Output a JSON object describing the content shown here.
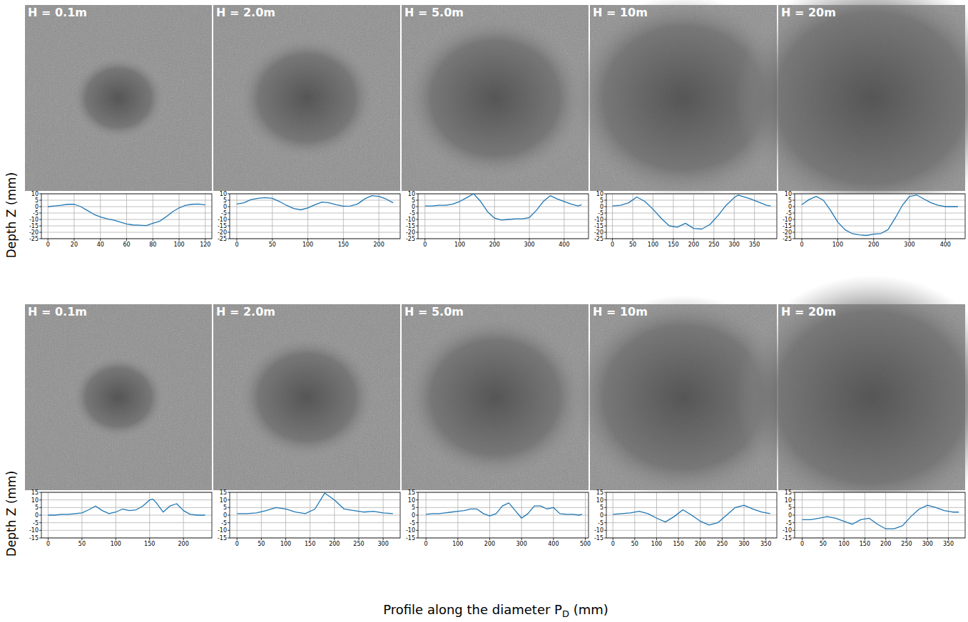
{
  "chart_data": [
    {
      "type": "line",
      "title": "H = 0.1m",
      "color": "#1f77b4",
      "grid": true,
      "x": [
        0,
        5,
        10,
        15,
        20,
        25,
        30,
        35,
        40,
        45,
        50,
        55,
        60,
        65,
        70,
        75,
        80,
        85,
        90,
        95,
        100,
        105,
        110,
        115,
        120
      ],
      "values": [
        0,
        0.5,
        1,
        1.8,
        1.8,
        0,
        -3,
        -6,
        -8,
        -9.5,
        -10.5,
        -12,
        -13.5,
        -14.3,
        -14.5,
        -14.8,
        -13,
        -11.5,
        -8,
        -4,
        -1,
        1,
        1.8,
        2,
        1.3
      ],
      "xlim": [
        -5,
        125
      ],
      "ylim": [
        -25,
        10
      ],
      "xticks": [
        0,
        20,
        40,
        60,
        80,
        100,
        120
      ],
      "yticks": [
        -25,
        -20,
        -15,
        -10,
        -5,
        0,
        5,
        10
      ]
    },
    {
      "type": "line",
      "title": "H = 2.0m",
      "color": "#1f77b4",
      "grid": true,
      "x": [
        0,
        10,
        20,
        30,
        40,
        50,
        60,
        70,
        80,
        90,
        100,
        110,
        120,
        130,
        140,
        150,
        160,
        170,
        180,
        190,
        200,
        210,
        220
      ],
      "values": [
        2,
        3,
        5.5,
        6.5,
        7,
        6.5,
        4,
        1,
        -1.5,
        -2.5,
        -1,
        1.5,
        3.5,
        3,
        1.5,
        0.3,
        0.5,
        2,
        6,
        8.5,
        8,
        6,
        3
      ],
      "xlim": [
        -10,
        230
      ],
      "ylim": [
        -25,
        10
      ],
      "xticks": [
        0,
        50,
        100,
        150,
        200
      ],
      "yticks": [
        -25,
        -20,
        -15,
        -10,
        -5,
        0,
        5,
        10
      ]
    },
    {
      "type": "line",
      "title": "H = 5.0m",
      "color": "#1f77b4",
      "grid": true,
      "x": [
        0,
        20,
        40,
        60,
        80,
        100,
        120,
        140,
        160,
        180,
        200,
        220,
        240,
        260,
        280,
        300,
        320,
        340,
        360,
        380,
        400,
        420,
        440,
        450
      ],
      "values": [
        0.5,
        0.5,
        1,
        1,
        2,
        4,
        7,
        10,
        4,
        -4,
        -9,
        -10.5,
        -10,
        -9.5,
        -9.5,
        -8.5,
        -3,
        4,
        8.5,
        6,
        4,
        2,
        0.5,
        1.5
      ],
      "xlim": [
        -20,
        470
      ],
      "ylim": [
        -25,
        10
      ],
      "xticks": [
        0,
        100,
        200,
        300,
        400
      ],
      "yticks": [
        -25,
        -20,
        -15,
        -10,
        -5,
        0,
        5,
        10
      ]
    },
    {
      "type": "line",
      "title": "H = 10m",
      "color": "#1f77b4",
      "grid": true,
      "x": [
        0,
        20,
        40,
        60,
        80,
        100,
        120,
        140,
        160,
        180,
        200,
        220,
        240,
        260,
        280,
        300,
        310,
        320,
        340,
        360,
        380,
        390
      ],
      "values": [
        0.5,
        1,
        3,
        7.5,
        4,
        -2,
        -9,
        -15,
        -16,
        -13,
        -17,
        -17.5,
        -14,
        -7,
        1,
        7,
        9,
        8,
        6,
        3.5,
        1,
        0.5
      ],
      "xlim": [
        -15,
        405
      ],
      "ylim": [
        -25,
        10
      ],
      "xticks": [
        0,
        50,
        100,
        150,
        200,
        250,
        300,
        350
      ],
      "yticks": [
        -25,
        -20,
        -15,
        -10,
        -5,
        0,
        5,
        10
      ]
    },
    {
      "type": "line",
      "title": "H = 20m",
      "color": "#1f77b4",
      "grid": true,
      "x": [
        0,
        20,
        40,
        60,
        80,
        100,
        120,
        140,
        160,
        180,
        200,
        220,
        240,
        260,
        280,
        300,
        320,
        340,
        360,
        380,
        400,
        420,
        435
      ],
      "values": [
        1.5,
        5.5,
        8,
        5,
        -3,
        -12,
        -18,
        -21,
        -22,
        -22.5,
        -21.5,
        -21,
        -18,
        -9,
        1,
        8,
        9,
        6,
        3,
        1,
        0,
        0,
        0
      ],
      "xlim": [
        -20,
        455
      ],
      "ylim": [
        -25,
        10
      ],
      "xticks": [
        0,
        100,
        200,
        300,
        400
      ],
      "yticks": [
        -25,
        -20,
        -15,
        -10,
        -5,
        0,
        5,
        10
      ]
    },
    {
      "type": "line",
      "title": "H = 0.1m",
      "color": "#1f77b4",
      "grid": true,
      "x": [
        0,
        10,
        20,
        30,
        40,
        50,
        60,
        70,
        80,
        90,
        100,
        110,
        120,
        130,
        140,
        150,
        155,
        160,
        170,
        180,
        190,
        200,
        210,
        220,
        232
      ],
      "values": [
        0,
        0,
        0.5,
        0.5,
        1,
        1.5,
        3.5,
        6,
        3,
        1,
        2,
        4,
        3,
        3.5,
        6,
        10,
        10.5,
        8,
        2,
        6,
        7.5,
        3,
        0.5,
        0,
        0
      ],
      "xlim": [
        -10,
        242
      ],
      "ylim": [
        -15,
        15
      ],
      "xticks": [
        0,
        50,
        100,
        150,
        200
      ],
      "yticks": [
        -15,
        -10,
        -5,
        0,
        5,
        10,
        15
      ]
    },
    {
      "type": "line",
      "title": "H = 2.0m",
      "color": "#1f77b4",
      "grid": true,
      "x": [
        0,
        20,
        40,
        60,
        80,
        100,
        120,
        140,
        160,
        180,
        200,
        220,
        240,
        260,
        280,
        300,
        320
      ],
      "values": [
        1,
        1,
        1.5,
        3,
        5,
        4,
        2,
        1,
        4,
        14.5,
        10,
        4,
        3,
        2,
        2.5,
        1.5,
        1
      ],
      "xlim": [
        -15,
        335
      ],
      "ylim": [
        -15,
        15
      ],
      "xticks": [
        0,
        50,
        100,
        150,
        200,
        250,
        300
      ],
      "yticks": [
        -15,
        -10,
        -5,
        0,
        5,
        10,
        15
      ]
    },
    {
      "type": "line",
      "title": "H = 5.0m",
      "color": "#1f77b4",
      "grid": true,
      "x": [
        0,
        20,
        40,
        60,
        80,
        100,
        120,
        140,
        160,
        180,
        200,
        220,
        240,
        260,
        280,
        300,
        320,
        340,
        360,
        380,
        400,
        420,
        440,
        460,
        480,
        490
      ],
      "values": [
        0.5,
        1,
        1,
        1.5,
        2,
        2.5,
        3,
        4,
        4,
        1,
        -0.5,
        1,
        6,
        8,
        3,
        -2,
        1,
        6,
        6,
        4,
        5,
        1,
        0.5,
        0.5,
        0,
        0.5
      ],
      "xlim": [
        -25,
        510
      ],
      "ylim": [
        -15,
        15
      ],
      "xticks": [
        0,
        100,
        200,
        300,
        400,
        500
      ],
      "yticks": [
        -15,
        -10,
        -5,
        0,
        5,
        10,
        15
      ]
    },
    {
      "type": "line",
      "title": "H = 10m",
      "color": "#1f77b4",
      "grid": true,
      "x": [
        0,
        20,
        40,
        60,
        80,
        100,
        120,
        140,
        160,
        180,
        200,
        220,
        240,
        260,
        280,
        300,
        320,
        340,
        360
      ],
      "values": [
        0.5,
        1,
        1.5,
        2.5,
        1,
        -2,
        -4.5,
        -1,
        3.5,
        0,
        -4,
        -6.5,
        -5,
        0,
        5,
        6.5,
        4,
        2,
        1
      ],
      "xlim": [
        -15,
        375
      ],
      "ylim": [
        -15,
        15
      ],
      "xticks": [
        0,
        50,
        100,
        150,
        200,
        250,
        300,
        350
      ],
      "yticks": [
        -15,
        -10,
        -5,
        0,
        5,
        10,
        15
      ]
    },
    {
      "type": "line",
      "title": "H = 20m",
      "color": "#1f77b4",
      "grid": true,
      "x": [
        0,
        20,
        40,
        60,
        80,
        100,
        120,
        140,
        160,
        180,
        200,
        220,
        240,
        260,
        280,
        300,
        320,
        340,
        360,
        375
      ],
      "values": [
        -3,
        -3,
        -2,
        -1,
        -2,
        -4,
        -6,
        -3,
        -2,
        -6,
        -9,
        -9,
        -7,
        -1,
        4,
        6.5,
        5,
        3,
        2,
        2
      ],
      "xlim": [
        -18,
        390
      ],
      "ylim": [
        -15,
        15
      ],
      "xticks": [
        0,
        50,
        100,
        150,
        200,
        250,
        300,
        350
      ],
      "yticks": [
        -15,
        -10,
        -5,
        0,
        5,
        10,
        15
      ]
    }
  ],
  "figure": {
    "ylabel": [
      "Depth Z (mm)",
      "Depth Z (mm)"
    ],
    "xlabel": {
      "text": "Profile along the diameter P",
      "subscript": "D",
      "suffix": " (mm)"
    }
  }
}
